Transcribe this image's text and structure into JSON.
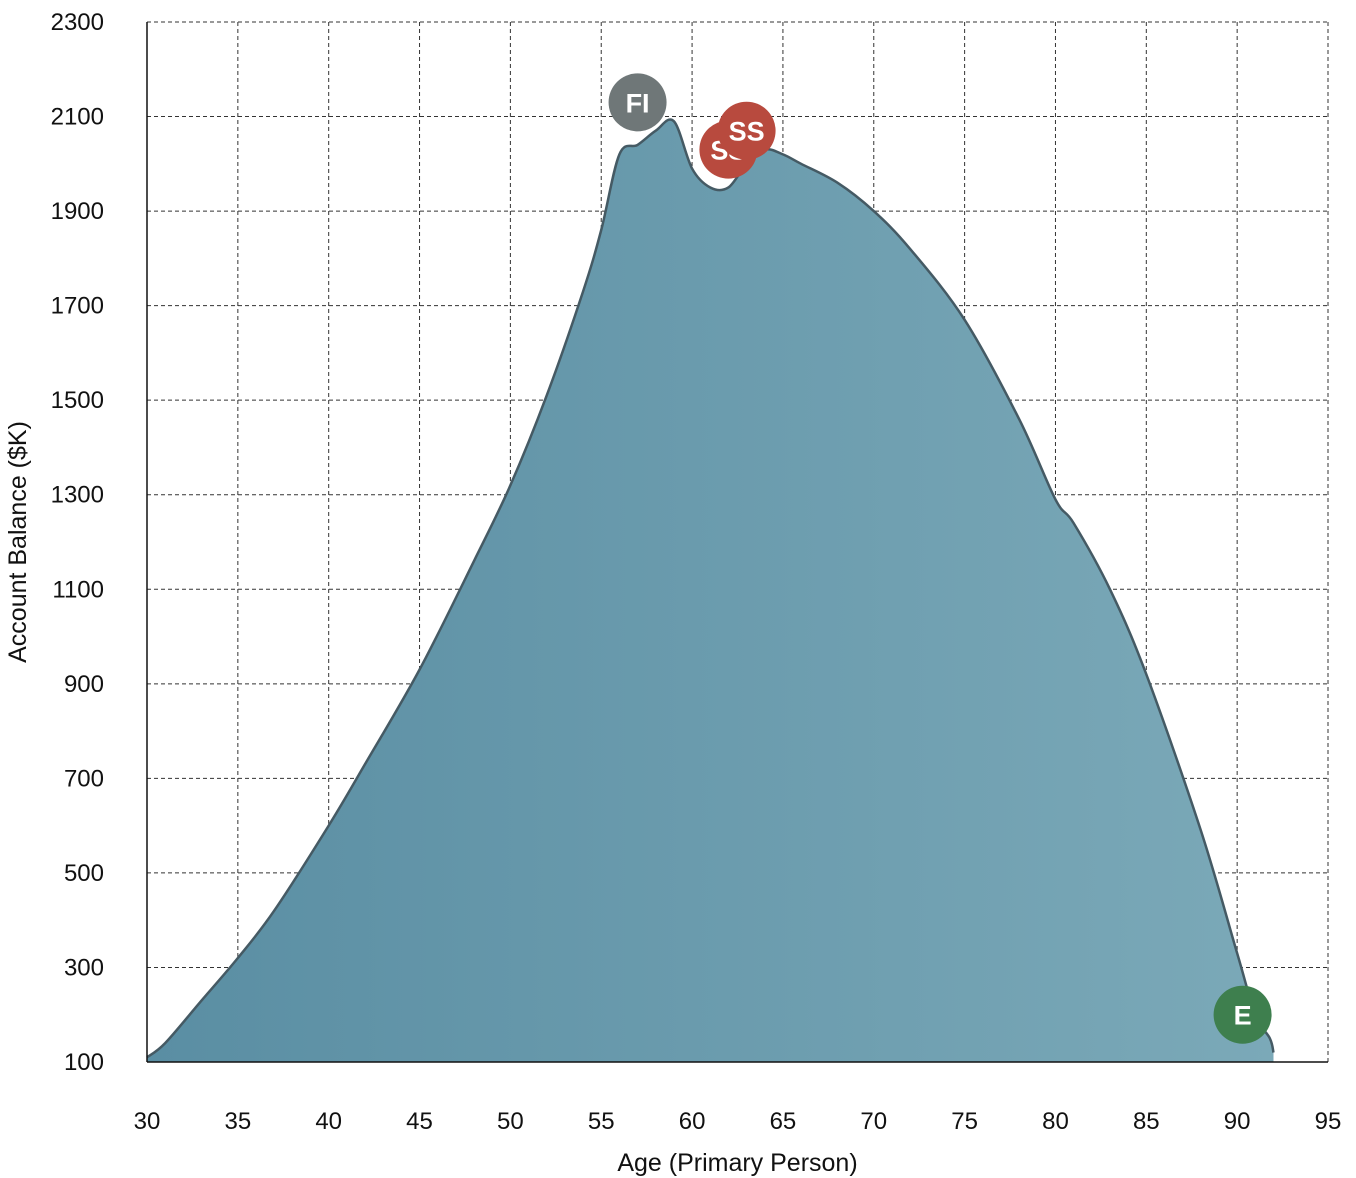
{
  "chart_data": {
    "type": "area",
    "title": "",
    "xlabel": "Age (Primary Person)",
    "ylabel": "Account Balance ($K)",
    "xlim": [
      30,
      95
    ],
    "ylim": [
      100,
      2300
    ],
    "x_ticks": [
      30,
      35,
      40,
      45,
      50,
      55,
      60,
      65,
      70,
      75,
      80,
      85,
      90,
      95
    ],
    "y_ticks": [
      100,
      300,
      500,
      700,
      900,
      1100,
      1300,
      1500,
      1700,
      1900,
      2100,
      2300
    ],
    "grid": true,
    "colors": {
      "fill_left": "#5a8ea3",
      "fill_right": "#7ba9b8",
      "stroke": "#455a64",
      "fi_marker": "#6f7778",
      "ss_marker": "#b84a3e",
      "e_marker": "#3e7f4e"
    },
    "series": [
      {
        "x": [
          30,
          31,
          33,
          35,
          37,
          40,
          42,
          45,
          48,
          50,
          52,
          54,
          55,
          56,
          57,
          58,
          59,
          60,
          61,
          62,
          63,
          64,
          65,
          66,
          68,
          70,
          72,
          75,
          78,
          80,
          81,
          83,
          85,
          88,
          90,
          91,
          91.8,
          92
        ],
        "y": [
          110,
          140,
          230,
          320,
          420,
          600,
          730,
          930,
          1160,
          1320,
          1510,
          1730,
          1860,
          2020,
          2040,
          2070,
          2090,
          1990,
          1950,
          1950,
          2000,
          2030,
          2020,
          2000,
          1960,
          1900,
          1820,
          1670,
          1460,
          1290,
          1240,
          1100,
          920,
          590,
          330,
          200,
          150,
          120
        ]
      }
    ],
    "markers": [
      {
        "label": "FI",
        "x": 57,
        "y": 2130,
        "color": "#6f7778"
      },
      {
        "label": "SS",
        "x": 62,
        "y": 2030,
        "color": "#b84a3e"
      },
      {
        "label": "SS",
        "x": 63,
        "y": 2070,
        "color": "#b84a3e"
      },
      {
        "label": "E",
        "x": 90.3,
        "y": 200,
        "color": "#3e7f4e"
      }
    ]
  }
}
